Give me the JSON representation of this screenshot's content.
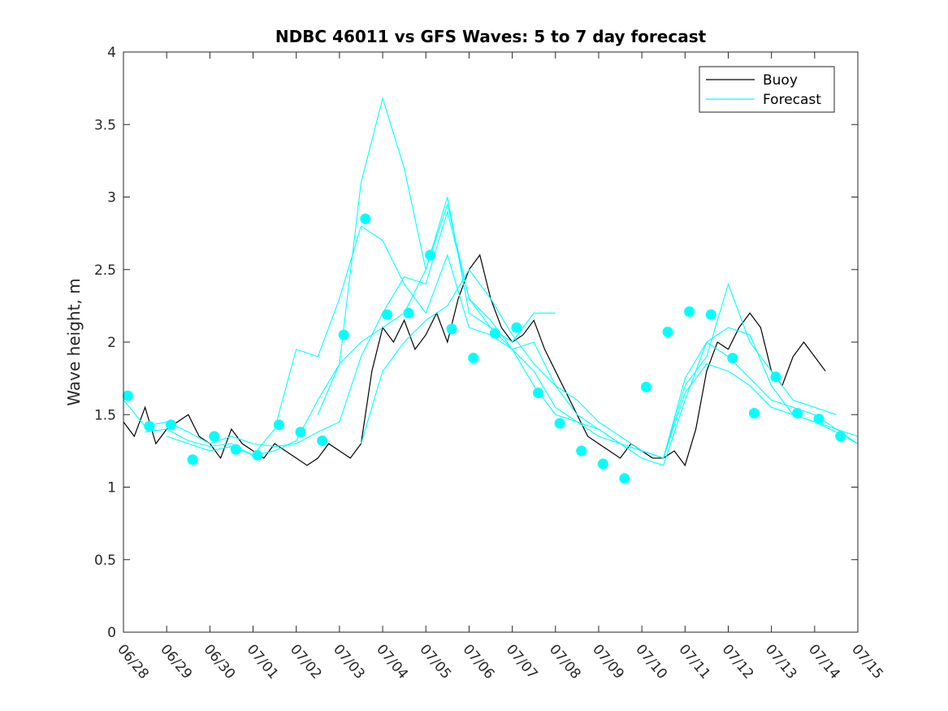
{
  "chart_data": {
    "type": "line",
    "title": "NDBC 46011 vs GFS Waves: 5 to 7 day forecast",
    "xlabel": "",
    "ylabel": "Wave height, m",
    "xlim": [
      0,
      17
    ],
    "ylim": [
      0,
      4
    ],
    "x_ticks": [
      "06/28",
      "06/29",
      "06/30",
      "07/01",
      "07/02",
      "07/03",
      "07/04",
      "07/05",
      "07/06",
      "07/07",
      "07/08",
      "07/09",
      "07/10",
      "07/11",
      "07/12",
      "07/13",
      "07/14",
      "07/15"
    ],
    "y_ticks": [
      "0",
      "0.5",
      "1",
      "1.5",
      "2",
      "2.5",
      "3",
      "3.5",
      "4"
    ],
    "legend": {
      "position": "top-right",
      "entries": [
        {
          "label": "Buoy",
          "color": "#000000"
        },
        {
          "label": "Forecast",
          "color": "#00ffff"
        }
      ]
    },
    "colors": {
      "buoy": "#000000",
      "forecast": "#00ffff"
    },
    "series": [
      {
        "name": "Buoy",
        "color": "#000000",
        "x": [
          0.0,
          0.25,
          0.5,
          0.75,
          1.0,
          1.25,
          1.5,
          1.75,
          2.0,
          2.25,
          2.5,
          2.75,
          3.0,
          3.25,
          3.5,
          3.75,
          4.0,
          4.25,
          4.5,
          4.75,
          5.0,
          5.25,
          5.5,
          5.75,
          6.0,
          6.25,
          6.5,
          6.75,
          7.0,
          7.25,
          7.5,
          7.75,
          8.0,
          8.25,
          8.5,
          8.75,
          9.0,
          9.25,
          9.5,
          9.75,
          10.0,
          10.25,
          10.5,
          10.75,
          11.0,
          11.25,
          11.5,
          11.75,
          12.0,
          12.25,
          12.5,
          12.75,
          13.0,
          13.25,
          13.5,
          13.75,
          14.0,
          14.25,
          14.5,
          14.75,
          15.0,
          15.25,
          15.5,
          15.75,
          16.0,
          16.25
        ],
        "y": [
          1.45,
          1.35,
          1.55,
          1.3,
          1.4,
          1.45,
          1.5,
          1.35,
          1.3,
          1.2,
          1.4,
          1.3,
          1.25,
          1.2,
          1.3,
          1.25,
          1.2,
          1.15,
          1.2,
          1.3,
          1.25,
          1.2,
          1.3,
          1.8,
          2.1,
          2.0,
          2.15,
          1.95,
          2.05,
          2.2,
          2.0,
          2.3,
          2.5,
          2.6,
          2.3,
          2.1,
          2.0,
          2.05,
          2.15,
          1.95,
          1.8,
          1.65,
          1.5,
          1.35,
          1.3,
          1.25,
          1.2,
          1.3,
          1.25,
          1.2,
          1.2,
          1.25,
          1.15,
          1.4,
          1.8,
          2.0,
          1.95,
          2.1,
          2.2,
          2.1,
          1.8,
          1.7,
          1.9,
          2.0,
          1.9,
          1.8
        ]
      },
      {
        "name": "",
        "color": "#00ffff",
        "x": [
          0.0,
          0.5,
          1.0,
          1.5,
          2.0,
          2.5,
          3.0,
          3.5,
          4.0,
          4.5,
          5.0,
          5.5,
          6.0,
          6.5,
          7.0,
          7.5,
          8.0,
          8.5,
          9.0,
          9.5,
          10.0,
          10.5,
          11.0,
          11.5,
          12.0,
          12.5,
          13.0,
          13.5,
          14.0,
          14.5,
          15.0,
          15.5,
          16.0,
          16.5,
          17.0
        ],
        "y": [
          1.6,
          1.42,
          1.45,
          1.38,
          1.3,
          1.35,
          1.3,
          1.28,
          1.3,
          1.38,
          1.45,
          1.9,
          2.2,
          2.45,
          2.4,
          2.9,
          2.3,
          2.15,
          1.95,
          2.0,
          1.7,
          1.5,
          1.4,
          1.3,
          1.25,
          1.2,
          1.75,
          2.0,
          1.9,
          1.75,
          1.6,
          1.55,
          1.5,
          1.4,
          1.35
        ]
      },
      {
        "name": "",
        "color": "#00ffff",
        "x": [
          0.5,
          1.0,
          1.5,
          2.0,
          2.5,
          3.0,
          3.5,
          4.0,
          4.5,
          5.0,
          5.5,
          6.0,
          6.5,
          7.0,
          7.5,
          8.0,
          8.5,
          9.0,
          9.5,
          10.0,
          10.5,
          11.0,
          11.5,
          12.0,
          12.5,
          13.0,
          13.5,
          14.0,
          14.5,
          15.0,
          15.5,
          16.0,
          16.5,
          17.0
        ],
        "y": [
          1.38,
          1.4,
          1.32,
          1.28,
          1.3,
          1.22,
          1.25,
          1.32,
          1.6,
          1.85,
          2.0,
          2.1,
          2.2,
          2.5,
          3.0,
          2.2,
          2.1,
          1.95,
          1.8,
          1.55,
          1.45,
          1.35,
          1.3,
          1.2,
          1.15,
          1.6,
          2.0,
          2.1,
          2.05,
          1.7,
          1.5,
          1.45,
          1.4,
          1.3
        ]
      },
      {
        "name": "",
        "color": "#00ffff",
        "x": [
          1.0,
          1.5,
          2.0,
          2.5,
          3.0,
          3.5,
          4.0,
          4.5,
          5.0,
          5.5,
          6.0,
          6.5,
          7.0,
          7.5,
          8.0,
          8.5,
          9.0,
          9.5,
          10.0,
          10.5,
          11.0,
          11.5,
          12.0,
          12.5,
          13.0,
          13.5,
          14.0,
          14.5,
          15.0,
          15.5,
          16.0,
          16.5
        ],
        "y": [
          1.35,
          1.3,
          1.25,
          1.28,
          1.22,
          1.4,
          1.95,
          1.9,
          2.3,
          2.8,
          2.7,
          2.4,
          2.2,
          2.6,
          2.1,
          2.05,
          1.95,
          1.7,
          1.5,
          1.45,
          1.4,
          1.3,
          1.25,
          1.2,
          1.7,
          1.9,
          2.4,
          2.0,
          1.8,
          1.6,
          1.55,
          1.5
        ]
      },
      {
        "name": "",
        "color": "#00ffff",
        "x": [
          4.5,
          5.0,
          5.5,
          6.0,
          6.5,
          7.0,
          7.5,
          8.0,
          8.5,
          9.0,
          9.5,
          10.0
        ],
        "y": [
          1.5,
          1.85,
          3.1,
          3.68,
          3.2,
          2.5,
          2.95,
          2.3,
          2.1,
          2.0,
          2.2,
          2.2
        ]
      },
      {
        "name": "",
        "color": "#00ffff",
        "x": [
          5.5,
          6.0,
          6.5,
          7.0,
          7.5,
          8.0,
          8.5,
          9.0,
          9.5,
          10.0,
          10.5,
          11.0,
          11.5,
          12.0,
          12.5,
          13.0,
          13.5,
          14.0,
          14.5,
          15.0,
          15.5,
          16.0,
          16.5,
          17.0
        ],
        "y": [
          1.3,
          1.8,
          2.0,
          2.15,
          2.25,
          2.5,
          2.3,
          2.05,
          1.85,
          1.7,
          1.6,
          1.45,
          1.35,
          1.25,
          1.2,
          1.65,
          1.85,
          1.8,
          1.7,
          1.55,
          1.5,
          1.45,
          1.38,
          1.3
        ]
      }
    ],
    "markers": {
      "color": "#00ffff",
      "x": [
        0.1,
        0.6,
        1.1,
        1.6,
        2.1,
        2.6,
        3.1,
        3.6,
        4.1,
        4.6,
        5.1,
        5.6,
        6.1,
        6.6,
        7.1,
        7.6,
        8.1,
        8.6,
        9.1,
        9.6,
        10.1,
        10.6,
        11.1,
        11.6,
        12.1,
        12.6,
        13.1,
        13.6,
        14.1,
        14.6,
        15.1,
        15.6,
        16.1,
        16.6
      ],
      "y": [
        1.63,
        1.42,
        1.43,
        1.19,
        1.35,
        1.26,
        1.22,
        1.43,
        1.38,
        1.32,
        2.05,
        2.85,
        2.19,
        2.2,
        2.6,
        2.09,
        1.89,
        2.06,
        2.1,
        1.65,
        1.44,
        1.25,
        1.16,
        1.06,
        1.69,
        2.07,
        2.21,
        2.19,
        1.89,
        1.51,
        1.76,
        1.51,
        1.47,
        1.35
      ]
    }
  }
}
